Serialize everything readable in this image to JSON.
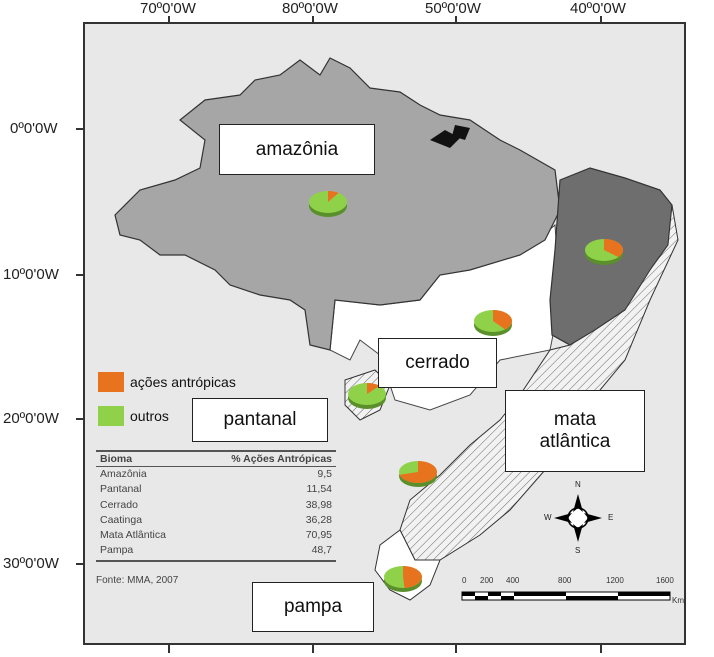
{
  "axes": {
    "top": [
      "70º0'0W",
      "80º0'0W",
      "50º0'0W",
      "40º0'0W"
    ],
    "left": [
      "0º0'0W",
      "10º0'0W",
      "20º0'0W",
      "30º0'0W"
    ]
  },
  "callouts": {
    "amazonia": "amazônia",
    "cerrado": "cerrado",
    "pantanal": "pantanal",
    "mata_atlantica_1": "mata",
    "mata_atlantica_2": "atlântica",
    "pampa": "pampa"
  },
  "legend": {
    "antropicas": {
      "label": "ações antrópicas",
      "color": "#e8731e"
    },
    "outros": {
      "label": "outros",
      "color": "#8fd24a"
    }
  },
  "table": {
    "headers": [
      "Bioma",
      "% Ações Antrópicas"
    ],
    "rows": [
      {
        "bioma": "Amazônia",
        "valor": "9,5"
      },
      {
        "bioma": "Pantanal",
        "valor": "11,54"
      },
      {
        "bioma": "Cerrado",
        "valor": "38,98"
      },
      {
        "bioma": "Caatinga",
        "valor": "36,28"
      },
      {
        "bioma": "Mata Atlântica",
        "valor": "70,95"
      },
      {
        "bioma": "Pampa",
        "valor": "48,7"
      }
    ],
    "source": "Fonte: MMA, 2007"
  },
  "scale": {
    "labels": [
      "0",
      "200",
      "400",
      "800",
      "1200",
      "1600"
    ],
    "unit": "Km"
  },
  "compass": {
    "n": "N",
    "s": "S",
    "e": "E",
    "w": "W"
  },
  "pies": [
    {
      "biome": "amazonia",
      "antropicas_pct": 9.5
    },
    {
      "biome": "caatinga",
      "antropicas_pct": 36.28
    },
    {
      "biome": "cerrado",
      "antropicas_pct": 38.98
    },
    {
      "biome": "pantanal",
      "antropicas_pct": 11.54
    },
    {
      "biome": "mata-atlantica",
      "antropicas_pct": 70.95
    },
    {
      "biome": "pampa",
      "antropicas_pct": 48.7
    }
  ]
}
